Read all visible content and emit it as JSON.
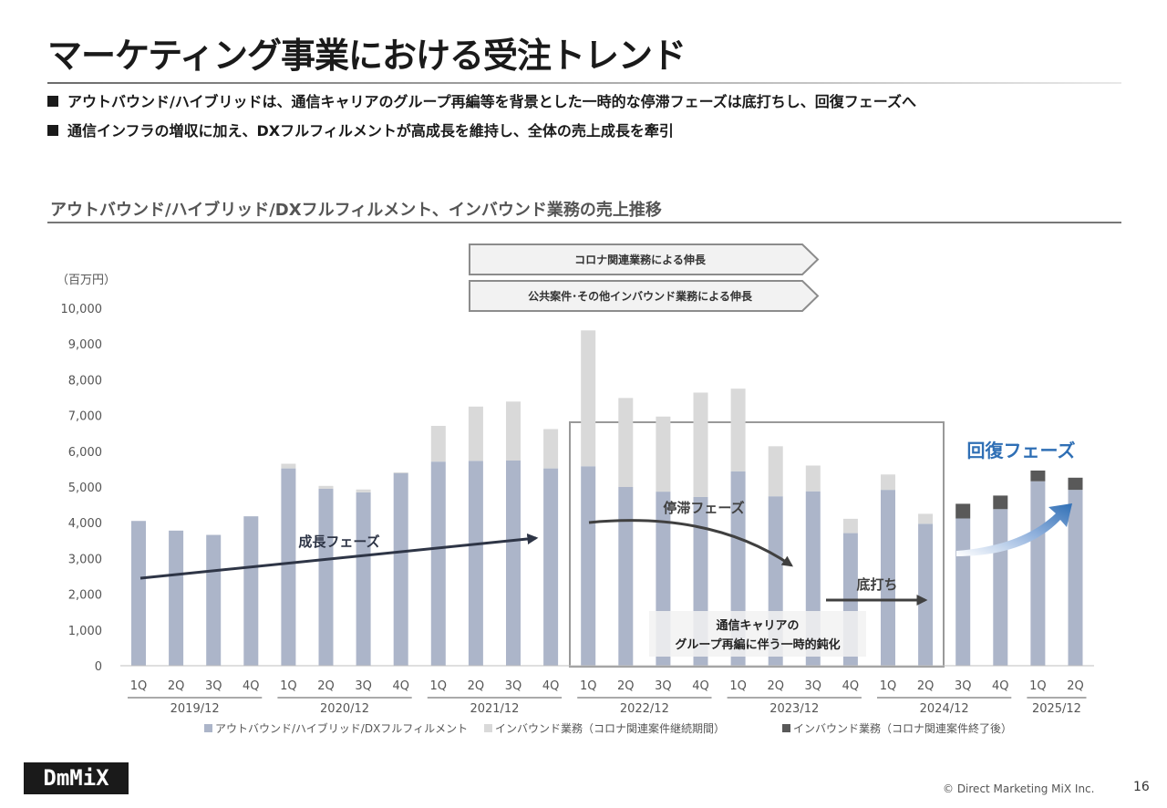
{
  "page": {
    "title": "マーケティング事業における受注トレンド",
    "bullets": [
      "アウトバウンド/ハイブリッドは、通信キャリアのグループ再編等を背景とした一時的な停滞フェーズは底打ちし、回復フェーズへ",
      "通信インフラの増収に加え、DXフルフィルメントが高成長を維持し、全体の売上成長を牽引"
    ],
    "section_title": "アウトバウンド/ハイブリッド/DXフルフィルメント、インバウンド業務の売上推移",
    "logo_text": "DmMiX",
    "copyright": "© Direct Marketing MiX Inc.",
    "page_number": "16"
  },
  "chart_data": {
    "type": "bar",
    "unit_label": "（百万円）",
    "ylim": [
      0,
      10000
    ],
    "y_ticks": [
      "0",
      "1,000",
      "2,000",
      "3,000",
      "4,000",
      "5,000",
      "6,000",
      "7,000",
      "8,000",
      "9,000",
      "10,000"
    ],
    "categories": [
      "1Q",
      "2Q",
      "3Q",
      "4Q",
      "1Q",
      "2Q",
      "3Q",
      "4Q",
      "1Q",
      "2Q",
      "3Q",
      "4Q",
      "1Q",
      "2Q",
      "3Q",
      "4Q",
      "1Q",
      "2Q",
      "3Q",
      "4Q",
      "1Q",
      "2Q",
      "3Q",
      "4Q",
      "1Q",
      "2Q"
    ],
    "fiscal_years": [
      {
        "label": "2019/12",
        "start": 0,
        "end": 3
      },
      {
        "label": "2020/12",
        "start": 4,
        "end": 7
      },
      {
        "label": "2021/12",
        "start": 8,
        "end": 11
      },
      {
        "label": "2022/12",
        "start": 12,
        "end": 15
      },
      {
        "label": "2023/12",
        "start": 16,
        "end": 19
      },
      {
        "label": "2024/12",
        "start": 20,
        "end": 23
      },
      {
        "label": "2025/12",
        "start": 24,
        "end": 25
      }
    ],
    "series": [
      {
        "name": "アウトバウンド/ハイブリッド/DXフルフィルメント",
        "color": "#acb5c9",
        "values": [
          4050,
          3780,
          3660,
          4180,
          5520,
          4950,
          4850,
          5390,
          5710,
          5730,
          5740,
          5520,
          5580,
          5000,
          4870,
          4720,
          5440,
          4740,
          4880,
          3710,
          4920,
          3970,
          4120,
          4380,
          5160,
          4920
        ]
      },
      {
        "name": "インバウンド業務（コロナ関連案件継続期間）",
        "color": "#d9d9d9",
        "values": [
          0,
          0,
          0,
          0,
          130,
          80,
          80,
          20,
          1000,
          1520,
          1650,
          1100,
          3800,
          2490,
          2100,
          2920,
          2310,
          1400,
          720,
          400,
          430,
          280,
          0,
          0,
          0,
          0
        ]
      },
      {
        "name": "インバウンド業務（コロナ関連案件終了後）",
        "color": "#595959",
        "values": [
          0,
          0,
          0,
          0,
          0,
          0,
          0,
          0,
          0,
          0,
          0,
          0,
          0,
          0,
          0,
          0,
          0,
          0,
          0,
          0,
          0,
          0,
          410,
          380,
          300,
          340
        ]
      }
    ],
    "banners": [
      "コロナ関連業務による伸長",
      "公共案件･その他インバウンド業務による伸長"
    ],
    "annotations": {
      "growth": "成長フェーズ",
      "stagnation": "停滞フェーズ",
      "bottom": "底打ち",
      "recovery": "回復フェーズ",
      "carrier_note_line1": "通信キャリアの",
      "carrier_note_line2": "グループ再編に伴う一時的鈍化"
    },
    "colors": {
      "arrow_dark": "#2e3546",
      "recovery_blue": "#2f6fb5",
      "box_border": "#999999"
    }
  }
}
